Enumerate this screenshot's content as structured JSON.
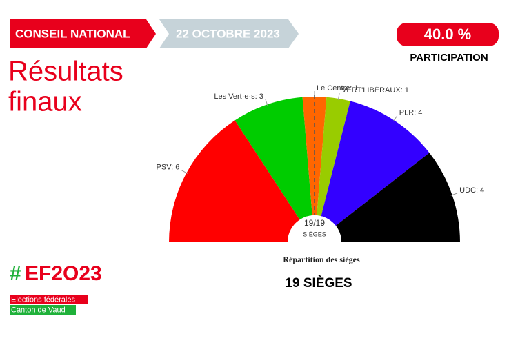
{
  "header": {
    "section": "CONSEIL NATIONAL",
    "date": "22 OCTOBRE 2023",
    "title_line1": "Résultats",
    "title_line2": "finaux"
  },
  "participation": {
    "value": "40.0 %",
    "label": "PARTICIPATION"
  },
  "branding": {
    "hashtag": "#",
    "logo": "EF2O23",
    "line1": "Elections fédérales",
    "line2": "Canton de Vaud"
  },
  "chart_data": {
    "type": "pie",
    "half": true,
    "values": [
      6,
      3,
      1,
      1,
      4,
      4
    ],
    "value_labels": [
      "PSV: 6",
      "Les Vert·e·s: 3",
      "Le Centre: 1",
      "VERT'LIBÉRAUX: 1",
      "PLR: 4",
      "UDC: 4"
    ],
    "colors": [
      "#ff0000",
      "#00cc00",
      "#ff6600",
      "#99cc00",
      "#3300ff",
      "#000000"
    ],
    "center_value": "19/19",
    "center_label": "SIÈGES",
    "subtitle": "Répartition des sièges",
    "total": "19 SIÈGES"
  }
}
